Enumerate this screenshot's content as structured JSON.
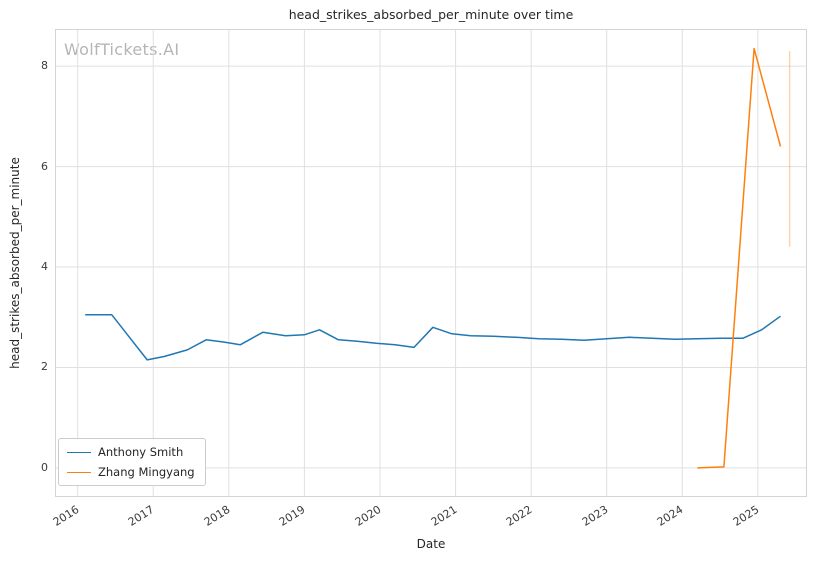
{
  "watermark": "WolfTickets.AI",
  "chart_data": {
    "type": "line",
    "title": "head_strikes_absorbed_per_minute over time",
    "xlabel": "Date",
    "ylabel": "head_strikes_absorbed_per_minute",
    "xlim": [
      2015.7,
      2025.65
    ],
    "ylim": [
      -0.58,
      8.74
    ],
    "xticks": [
      2016,
      2017,
      2018,
      2019,
      2020,
      2021,
      2022,
      2023,
      2024,
      2025
    ],
    "yticks": [
      0,
      2,
      4,
      6,
      8
    ],
    "grid": true,
    "grid_color": "#e0e0e0",
    "frame_color": "#d4d4d4",
    "legend_position": "lower left",
    "series": [
      {
        "name": "Anthony Smith",
        "color": "#1f77b4",
        "x": [
          2016.1,
          2016.45,
          2016.92,
          2017.15,
          2017.45,
          2017.7,
          2017.95,
          2018.15,
          2018.45,
          2018.75,
          2019.0,
          2019.2,
          2019.45,
          2019.7,
          2019.95,
          2020.2,
          2020.45,
          2020.7,
          2020.95,
          2021.2,
          2021.5,
          2021.8,
          2022.1,
          2022.4,
          2022.7,
          2023.0,
          2023.3,
          2023.6,
          2023.9,
          2024.2,
          2024.5,
          2024.8,
          2025.05,
          2025.3
        ],
        "y": [
          3.05,
          3.05,
          2.15,
          2.22,
          2.35,
          2.55,
          2.5,
          2.45,
          2.7,
          2.63,
          2.65,
          2.75,
          2.55,
          2.52,
          2.48,
          2.45,
          2.4,
          2.8,
          2.67,
          2.63,
          2.62,
          2.6,
          2.57,
          2.56,
          2.54,
          2.57,
          2.6,
          2.58,
          2.56,
          2.57,
          2.58,
          2.58,
          2.75,
          3.02
        ]
      },
      {
        "name": "Zhang Mingyang",
        "color": "#ff7f0e",
        "x": [
          2024.2,
          2024.55,
          2024.95,
          2025.3
        ],
        "y": [
          0.0,
          0.02,
          8.35,
          6.4
        ]
      }
    ],
    "error_bar": {
      "x": 2025.42,
      "y_low": 4.4,
      "y_high": 8.3,
      "color": "#ff7f0e",
      "opacity": 0.35
    }
  }
}
